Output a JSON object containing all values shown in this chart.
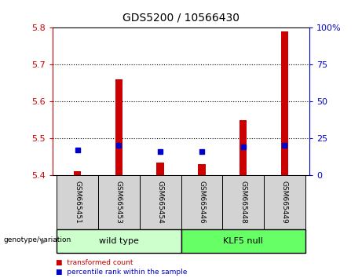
{
  "title": "GDS5200 / 10566430",
  "samples": [
    "GSM665451",
    "GSM665453",
    "GSM665454",
    "GSM665446",
    "GSM665448",
    "GSM665449"
  ],
  "red_values": [
    5.41,
    5.66,
    5.435,
    5.43,
    5.55,
    5.79
  ],
  "blue_values_pct": [
    17,
    20,
    16,
    16,
    19,
    20
  ],
  "y_min": 5.4,
  "y_max": 5.8,
  "y_ticks": [
    5.4,
    5.5,
    5.6,
    5.7,
    5.8
  ],
  "right_y_ticks": [
    0,
    25,
    50,
    75,
    100
  ],
  "right_y_labels": [
    "0",
    "25",
    "50",
    "75",
    "100%"
  ],
  "bar_bottom": 5.4,
  "bar_width": 0.18,
  "blue_marker_size": 5,
  "red_color": "#cc0000",
  "blue_color": "#0000cc",
  "wild_type_label": "wild type",
  "klf5_label": "KLF5 null",
  "genotype_label": "genotype/variation",
  "legend_red": "transformed count",
  "legend_blue": "percentile rank within the sample",
  "wild_type_color": "#ccffcc",
  "klf5_color": "#66ff66",
  "sample_bg_color": "#d3d3d3",
  "title_fontsize": 10,
  "tick_fontsize": 8,
  "label_fontsize": 7,
  "geno_fontsize": 8
}
